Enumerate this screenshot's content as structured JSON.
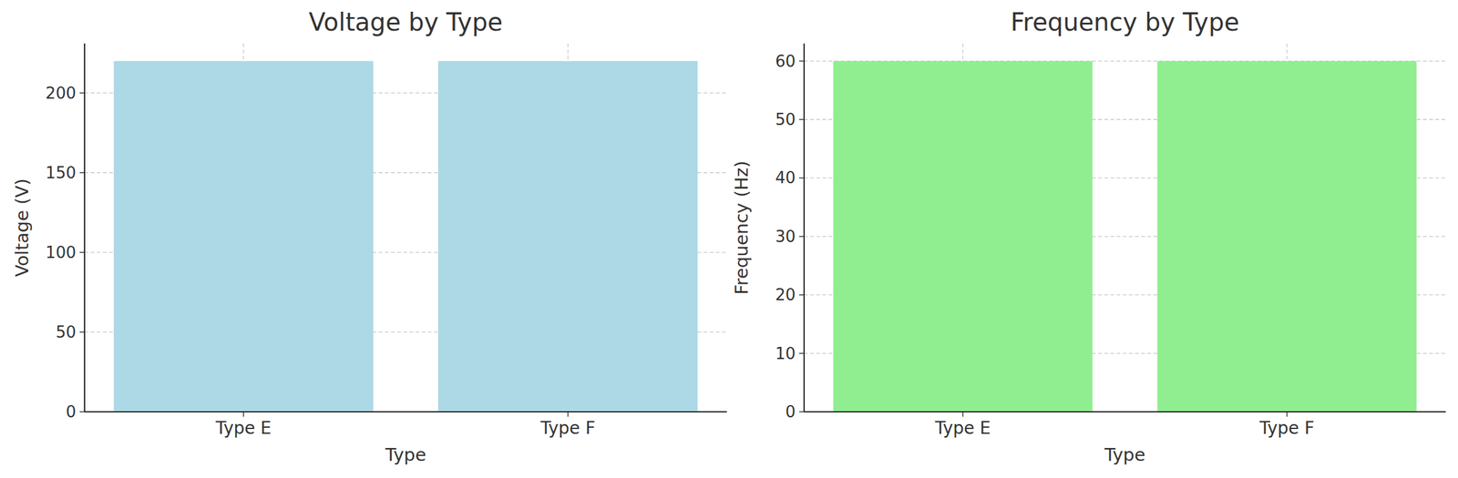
{
  "chart_data": [
    {
      "type": "bar",
      "title": "Voltage by Type",
      "x_label": "Type",
      "y_label": "Voltage (V)",
      "categories": [
        "Type E",
        "Type F"
      ],
      "values": [
        220,
        220
      ],
      "color": "#add8e6",
      "ylim": [
        0,
        231
      ],
      "yticks": [
        0,
        50,
        100,
        150,
        200
      ],
      "grid": true
    },
    {
      "type": "bar",
      "title": "Frequency by Type",
      "x_label": "Type",
      "y_label": "Frequency (Hz)",
      "categories": [
        "Type E",
        "Type F"
      ],
      "values": [
        60,
        60
      ],
      "color": "#90ee90",
      "ylim": [
        0,
        63
      ],
      "yticks": [
        0,
        10,
        20,
        30,
        40,
        50,
        60
      ],
      "grid": true
    }
  ]
}
